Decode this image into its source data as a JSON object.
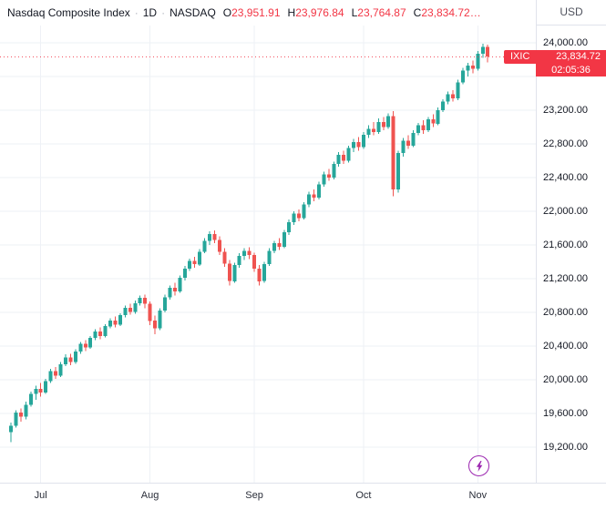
{
  "header": {
    "title": "Nasdaq Composite Index",
    "sep": "·",
    "interval": "1D",
    "exchange": "NASDAQ",
    "ohlc": [
      {
        "label": "O",
        "value": "23,951.91"
      },
      {
        "label": "H",
        "value": "23,976.84"
      },
      {
        "label": "L",
        "value": "23,764.87"
      },
      {
        "label": "C",
        "value": "23,834.72…"
      }
    ]
  },
  "price_scale": {
    "currency": "USD",
    "badge": {
      "symbol": "IXIC",
      "price": "23,834.72",
      "countdown": "02:05:36"
    }
  },
  "colors": {
    "up": "#26a69a",
    "down": "#ef5350",
    "value_text": "#f23645",
    "badge_bg": "#f23645",
    "grid": "#eef1f6",
    "axis_text": "#131722",
    "accent_purple": "#9c27b0"
  },
  "chart_data": {
    "type": "candlestick",
    "title": "Nasdaq Composite Index",
    "interval": "1D",
    "exchange": "NASDAQ",
    "currency": "USD",
    "last_bar": {
      "open": 23951.91,
      "high": 23976.84,
      "low": 23764.87,
      "close": 23834.72
    },
    "ylim": [
      18778,
      24205
    ],
    "y_axis": {
      "grid_step": 400,
      "grid_values": [
        19200,
        19600,
        20000,
        20400,
        20800,
        21200,
        21600,
        22000,
        22400,
        22800,
        23200,
        23600,
        24000
      ],
      "labels": [
        {
          "value": 24000,
          "text": "24,000.00"
        },
        {
          "value": 23200,
          "text": "23,200.00"
        },
        {
          "value": 22800,
          "text": "22,800.00"
        },
        {
          "value": 22400,
          "text": "22,400.00"
        },
        {
          "value": 22000,
          "text": "22,000.00"
        },
        {
          "value": 21600,
          "text": "21,600.00"
        },
        {
          "value": 21200,
          "text": "21,200.00"
        },
        {
          "value": 20800,
          "text": "20,800.00"
        },
        {
          "value": 20400,
          "text": "20,400.00"
        },
        {
          "value": 20000,
          "text": "20,000.00"
        },
        {
          "value": 19600,
          "text": "19,600.00"
        },
        {
          "value": 19200,
          "text": "19,200.00"
        }
      ]
    },
    "x_axis": {
      "labels": [
        "Jul",
        "Aug",
        "Sep",
        "Oct",
        "Nov"
      ],
      "month_start_indices": [
        6,
        28,
        49,
        71,
        94
      ]
    },
    "candles": [
      [
        19380,
        19490,
        19260,
        19455
      ],
      [
        19455,
        19640,
        19430,
        19610
      ],
      [
        19610,
        19660,
        19500,
        19560
      ],
      [
        19560,
        19740,
        19530,
        19705
      ],
      [
        19705,
        19860,
        19680,
        19830
      ],
      [
        19830,
        19930,
        19760,
        19890
      ],
      [
        19890,
        19960,
        19800,
        19850
      ],
      [
        19850,
        20010,
        19830,
        19985
      ],
      [
        19985,
        20130,
        19960,
        20105
      ],
      [
        20105,
        20150,
        20010,
        20050
      ],
      [
        20050,
        20210,
        20030,
        20185
      ],
      [
        20185,
        20300,
        20160,
        20265
      ],
      [
        20265,
        20310,
        20170,
        20210
      ],
      [
        20210,
        20360,
        20190,
        20335
      ],
      [
        20335,
        20450,
        20310,
        20425
      ],
      [
        20425,
        20470,
        20340,
        20385
      ],
      [
        20385,
        20520,
        20365,
        20495
      ],
      [
        20495,
        20600,
        20470,
        20575
      ],
      [
        20575,
        20620,
        20480,
        20520
      ],
      [
        20520,
        20660,
        20500,
        20635
      ],
      [
        20635,
        20730,
        20610,
        20705
      ],
      [
        20705,
        20750,
        20620,
        20655
      ],
      [
        20655,
        20790,
        20635,
        20765
      ],
      [
        20765,
        20880,
        20740,
        20855
      ],
      [
        20855,
        20900,
        20770,
        20805
      ],
      [
        20805,
        20940,
        20785,
        20910
      ],
      [
        20910,
        21000,
        20880,
        20975
      ],
      [
        20975,
        21010,
        20850,
        20905
      ],
      [
        20905,
        20930,
        20650,
        20700
      ],
      [
        20700,
        20760,
        20540,
        20610
      ],
      [
        20610,
        20850,
        20590,
        20820
      ],
      [
        20820,
        21010,
        20800,
        20980
      ],
      [
        20980,
        21120,
        20950,
        21090
      ],
      [
        21090,
        21150,
        21000,
        21050
      ],
      [
        21050,
        21240,
        21030,
        21210
      ],
      [
        21210,
        21350,
        21180,
        21320
      ],
      [
        21320,
        21440,
        21290,
        21410
      ],
      [
        21410,
        21460,
        21330,
        21370
      ],
      [
        21370,
        21550,
        21350,
        21520
      ],
      [
        21520,
        21680,
        21500,
        21650
      ],
      [
        21650,
        21760,
        21600,
        21730
      ],
      [
        21730,
        21770,
        21620,
        21660
      ],
      [
        21660,
        21700,
        21480,
        21520
      ],
      [
        21520,
        21560,
        21340,
        21380
      ],
      [
        21380,
        21420,
        21120,
        21170
      ],
      [
        21170,
        21390,
        21150,
        21360
      ],
      [
        21360,
        21500,
        21330,
        21470
      ],
      [
        21470,
        21560,
        21420,
        21530
      ],
      [
        21530,
        21570,
        21430,
        21480
      ],
      [
        21480,
        21510,
        21280,
        21320
      ],
      [
        21320,
        21360,
        21120,
        21170
      ],
      [
        21170,
        21400,
        21150,
        21370
      ],
      [
        21370,
        21560,
        21350,
        21530
      ],
      [
        21530,
        21650,
        21500,
        21620
      ],
      [
        21620,
        21680,
        21540,
        21580
      ],
      [
        21580,
        21780,
        21560,
        21750
      ],
      [
        21750,
        21900,
        21720,
        21870
      ],
      [
        21870,
        22000,
        21840,
        21970
      ],
      [
        21970,
        22020,
        21880,
        21920
      ],
      [
        21920,
        22110,
        21900,
        22080
      ],
      [
        22080,
        22230,
        22050,
        22200
      ],
      [
        22200,
        22260,
        22120,
        22160
      ],
      [
        22160,
        22350,
        22140,
        22320
      ],
      [
        22320,
        22470,
        22290,
        22440
      ],
      [
        22440,
        22500,
        22360,
        22400
      ],
      [
        22400,
        22590,
        22380,
        22560
      ],
      [
        22560,
        22700,
        22530,
        22670
      ],
      [
        22670,
        22720,
        22560,
        22600
      ],
      [
        22600,
        22780,
        22580,
        22750
      ],
      [
        22750,
        22860,
        22700,
        22820
      ],
      [
        22820,
        22880,
        22720,
        22760
      ],
      [
        22760,
        22940,
        22740,
        22910
      ],
      [
        22910,
        23020,
        22870,
        22980
      ],
      [
        22980,
        23060,
        22900,
        22940
      ],
      [
        22940,
        23100,
        22920,
        23060
      ],
      [
        23060,
        23120,
        22960,
        23000
      ],
      [
        23000,
        23160,
        22980,
        23130
      ],
      [
        23130,
        23190,
        22180,
        22260
      ],
      [
        22260,
        22720,
        22220,
        22690
      ],
      [
        22690,
        22870,
        22650,
        22840
      ],
      [
        22840,
        22900,
        22740,
        22780
      ],
      [
        22780,
        22960,
        22760,
        22930
      ],
      [
        22930,
        23050,
        22900,
        23020
      ],
      [
        23020,
        23080,
        22920,
        22960
      ],
      [
        22960,
        23120,
        22940,
        23090
      ],
      [
        23090,
        23150,
        23000,
        23040
      ],
      [
        23040,
        23230,
        23020,
        23200
      ],
      [
        23200,
        23330,
        23180,
        23300
      ],
      [
        23300,
        23420,
        23270,
        23390
      ],
      [
        23390,
        23440,
        23300,
        23340
      ],
      [
        23340,
        23560,
        23320,
        23530
      ],
      [
        23530,
        23700,
        23510,
        23670
      ],
      [
        23670,
        23760,
        23600,
        23730
      ],
      [
        23730,
        23790,
        23640,
        23690
      ],
      [
        23690,
        23900,
        23670,
        23870
      ],
      [
        23870,
        23990,
        23820,
        23950
      ],
      [
        23951.91,
        23976.84,
        23764.87,
        23834.72
      ]
    ]
  }
}
